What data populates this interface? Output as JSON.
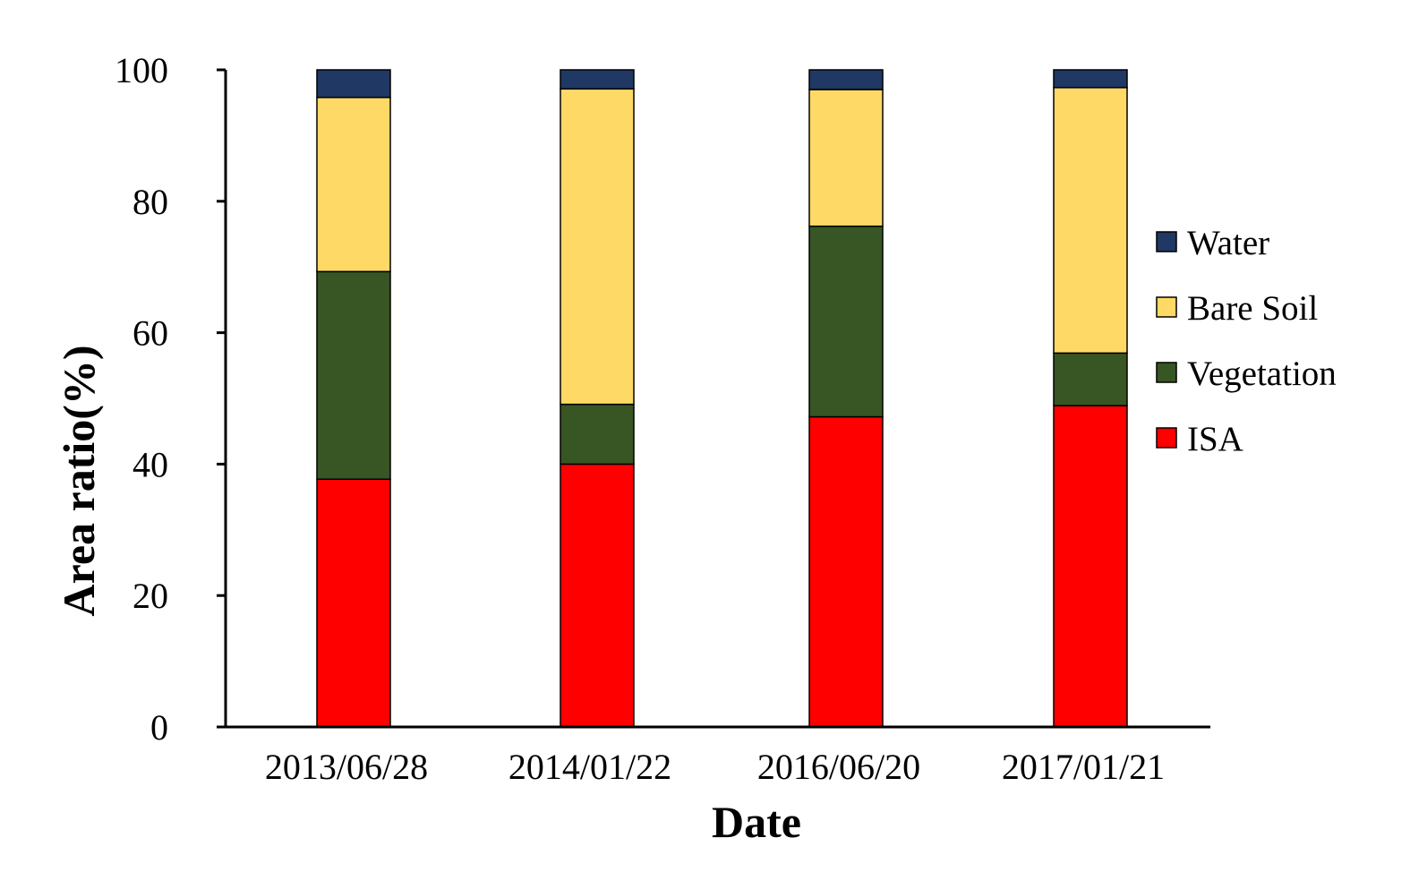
{
  "chart_data": {
    "type": "bar",
    "stacked": true,
    "categories": [
      "2013/06/28",
      "2014/01/22",
      "2016/06/20",
      "2017/01/21"
    ],
    "series": [
      {
        "name": "ISA",
        "color": "#ff0000",
        "values": [
          37.7,
          40.0,
          47.2,
          48.9
        ]
      },
      {
        "name": "Vegetation",
        "color": "#375623",
        "values": [
          31.6,
          9.1,
          29.0,
          8.0
        ]
      },
      {
        "name": "Bare Soil",
        "color": "#ffd966",
        "values": [
          26.5,
          48.0,
          20.8,
          40.4
        ]
      },
      {
        "name": "Water",
        "color": "#1f3864",
        "values": [
          4.2,
          2.9,
          3.0,
          2.7
        ]
      }
    ],
    "legend_order": [
      "Water",
      "Bare Soil",
      "Vegetation",
      "ISA"
    ],
    "xlabel": "Date",
    "ylabel": "Area ratio(%)",
    "ylim": [
      0,
      100
    ],
    "yticks": [
      "0",
      "20",
      "40",
      "60",
      "80",
      "100"
    ],
    "grid": false,
    "legend_position": "right"
  }
}
